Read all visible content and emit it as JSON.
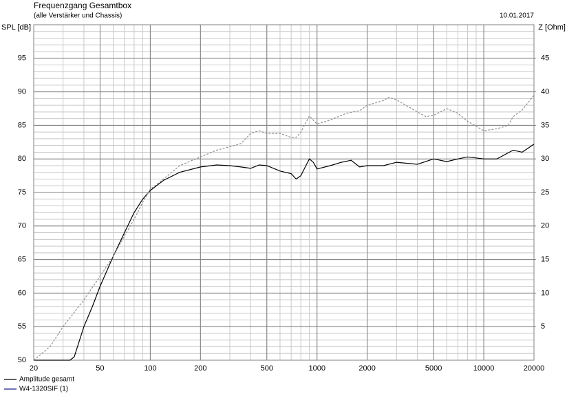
{
  "chart_data": {
    "type": "line",
    "title": "Frequenzgang Gesamtbox",
    "subtitle": "(alle Verstärker und Chassis)",
    "date": "10.01.2017",
    "ylabel": "SPL [dB]",
    "y2label": "Z [Ohm]",
    "xscale": "log",
    "grid": true,
    "xlim": [
      20,
      20000
    ],
    "xticks": [
      20,
      50,
      100,
      200,
      500,
      1000,
      2000,
      5000,
      10000,
      20000
    ],
    "ylim": [
      50,
      100
    ],
    "yticks": [
      50,
      55,
      60,
      65,
      70,
      75,
      80,
      85,
      90,
      95
    ],
    "y2lim": [
      0,
      50
    ],
    "y2ticks": [
      5,
      10,
      15,
      20,
      25,
      30,
      35,
      40,
      45
    ],
    "series": [
      {
        "name": "Amplitude gesamt",
        "color": "#000000",
        "dash": false,
        "x": [
          20,
          30,
          33,
          35,
          40,
          45,
          50,
          60,
          70,
          80,
          90,
          100,
          120,
          150,
          200,
          250,
          300,
          350,
          400,
          450,
          500,
          600,
          700,
          750,
          800,
          850,
          900,
          950,
          1000,
          1200,
          1400,
          1600,
          1800,
          2000,
          2500,
          3000,
          4000,
          5000,
          6000,
          7000,
          8000,
          10000,
          12000,
          15000,
          17000,
          20000
        ],
        "values": [
          50,
          50,
          50,
          50.5,
          55,
          58,
          61,
          65.5,
          69,
          72,
          74,
          75.3,
          76.8,
          78,
          78.8,
          79.1,
          79,
          78.8,
          78.6,
          79.1,
          79,
          78.2,
          77.8,
          77,
          77.5,
          78.8,
          80,
          79.5,
          78.5,
          79,
          79.5,
          79.8,
          78.8,
          79,
          79,
          79.5,
          79.2,
          80,
          79.6,
          80,
          80.3,
          80,
          80,
          81.3,
          81,
          82.2
        ]
      },
      {
        "name": "W4-1320SIF (1)",
        "color": "#909090",
        "legend_color": "#1a1a8c",
        "dash": true,
        "x": [
          20,
          25,
          30,
          40,
          50,
          60,
          70,
          80,
          90,
          100,
          120,
          150,
          200,
          250,
          300,
          350,
          400,
          450,
          500,
          600,
          700,
          750,
          800,
          900,
          1000,
          1200,
          1500,
          1800,
          2000,
          2500,
          2700,
          3000,
          4000,
          4500,
          5000,
          6000,
          7000,
          8000,
          10000,
          12000,
          14000,
          15000,
          17000,
          20000
        ],
        "values": [
          50,
          52,
          55,
          59,
          62.5,
          65.5,
          68.5,
          71,
          73.5,
          75.5,
          77,
          79,
          80.3,
          81.3,
          81.8,
          82.3,
          83.8,
          84.2,
          83.8,
          83.8,
          83.2,
          83.2,
          84,
          86.4,
          85.2,
          85.8,
          86.8,
          87.2,
          88,
          88.7,
          89.2,
          88.8,
          87,
          86.3,
          86.5,
          87.5,
          86.8,
          85.6,
          84.2,
          84.5,
          85,
          86.3,
          87.3,
          89.5
        ]
      }
    ]
  }
}
